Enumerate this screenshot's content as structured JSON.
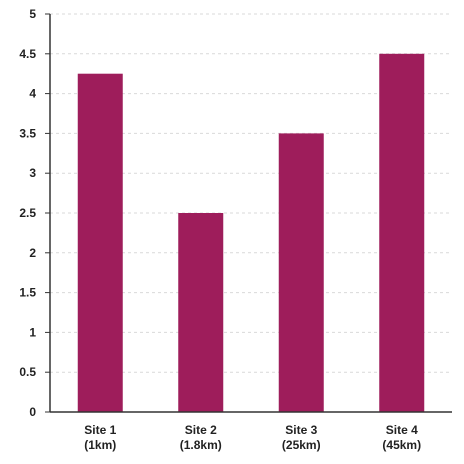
{
  "chart_data": {
    "type": "bar",
    "categories": [
      [
        "Site 1",
        "(1km)"
      ],
      [
        "Site 2",
        "(1.8km)"
      ],
      [
        "Site 3",
        "(25km)"
      ],
      [
        "Site 4",
        "(45km)"
      ]
    ],
    "values": [
      4.25,
      2.5,
      3.5,
      4.5
    ],
    "ylim": [
      0,
      5
    ],
    "yticks": [
      "0",
      "0.5",
      "1",
      "1.5",
      "2",
      "2.5",
      "3",
      "3.5",
      "4",
      "4.5",
      "5"
    ],
    "title": "",
    "xlabel": "",
    "ylabel": "",
    "grid": true,
    "colors": {
      "bar": "#9e1d5b",
      "axis": "#333333",
      "grid": "#d9d9d9"
    }
  }
}
